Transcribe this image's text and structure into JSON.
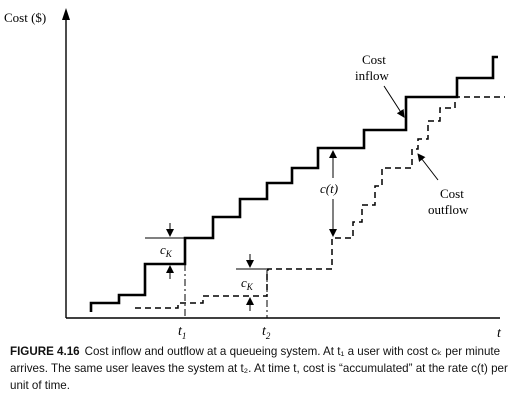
{
  "axes": {
    "y_label": "Cost ($)",
    "x_label": "t"
  },
  "series": {
    "inflow": {
      "label_line1": "Cost",
      "label_line2": "inflow"
    },
    "outflow": {
      "label_line1": "Cost",
      "label_line2": "outflow"
    }
  },
  "annotations": {
    "ck_upper": {
      "main": "c",
      "sub": "K"
    },
    "ck_lower": {
      "main": "c",
      "sub": "K"
    },
    "ct": "c(t)",
    "t1": {
      "main": "t",
      "sub": "1"
    },
    "t2": {
      "main": "t",
      "sub": "2"
    }
  },
  "caption": {
    "label": "FIGURE 4.16",
    "text": "Cost inflow and outflow at a queueing system. At t₁ a user with cost cₖ per minute arrives. The same user leaves the system at t₂. At time t, cost is “accumulated” at the rate c(t) per unit of time."
  }
}
